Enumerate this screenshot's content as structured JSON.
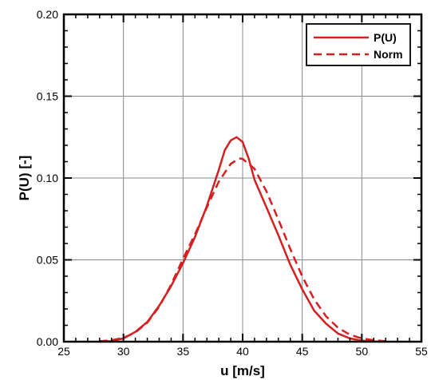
{
  "chart_data": {
    "type": "line",
    "xlabel": "u [m/s]",
    "ylabel": "P(U) [-]",
    "xlim": [
      25,
      55
    ],
    "ylim": [
      0,
      0.2
    ],
    "xticks": [
      25,
      30,
      35,
      40,
      45,
      50,
      55
    ],
    "yticks": [
      0.0,
      0.05,
      0.1,
      0.15,
      0.2
    ],
    "ytick_labels": [
      "0.00",
      "0.05",
      "0.10",
      "0.15",
      "0.20"
    ],
    "grid": true,
    "legend_position": "top-right",
    "series": [
      {
        "name": "P(U)",
        "style": "solid",
        "color": "#d42020",
        "x": [
          28,
          29,
          30,
          31,
          32,
          33,
          34,
          35,
          36,
          37,
          38,
          38.5,
          39,
          39.5,
          40,
          40.5,
          41,
          42,
          43,
          44,
          45,
          46,
          47,
          48,
          49,
          50,
          51,
          52
        ],
        "y": [
          0.0,
          0.0003,
          0.002,
          0.006,
          0.012,
          0.022,
          0.034,
          0.048,
          0.064,
          0.083,
          0.105,
          0.117,
          0.123,
          0.125,
          0.122,
          0.112,
          0.099,
          0.082,
          0.065,
          0.047,
          0.032,
          0.019,
          0.011,
          0.005,
          0.002,
          0.0006,
          0.0001,
          0.0
        ]
      },
      {
        "name": "Norm",
        "style": "dashed",
        "color": "#d42020",
        "x": [
          28,
          29,
          30,
          31,
          32,
          33,
          34,
          35,
          36,
          37,
          38,
          39,
          39.7,
          40,
          41,
          42,
          43,
          44,
          45,
          46,
          47,
          48,
          49,
          50,
          51,
          52
        ],
        "y": [
          0.0003,
          0.0009,
          0.0024,
          0.0056,
          0.0116,
          0.0214,
          0.0349,
          0.0507,
          0.0656,
          0.0821,
          0.0978,
          0.1087,
          0.112,
          0.1117,
          0.1056,
          0.0918,
          0.0746,
          0.0567,
          0.0399,
          0.0259,
          0.0155,
          0.0085,
          0.0043,
          0.002,
          0.0009,
          0.0003
        ]
      }
    ]
  }
}
